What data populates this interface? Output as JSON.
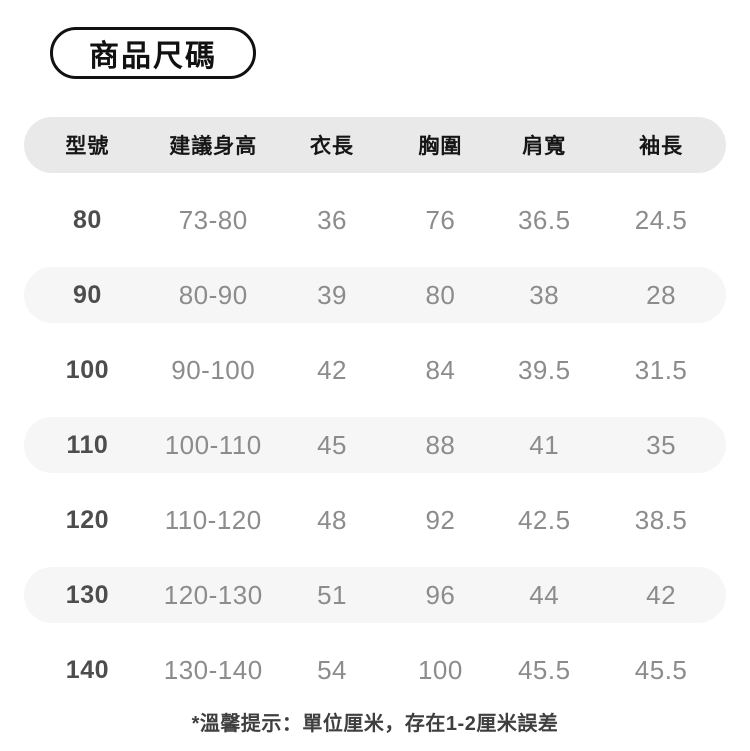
{
  "title_badge": "商品尺碼",
  "table": {
    "headers": [
      "型號",
      "建議身高",
      "衣長",
      "胸圍",
      "肩寬",
      "袖長"
    ],
    "rows": [
      [
        "80",
        "73-80",
        "36",
        "76",
        "36.5",
        "24.5"
      ],
      [
        "90",
        "80-90",
        "39",
        "80",
        "38",
        "28"
      ],
      [
        "100",
        "90-100",
        "42",
        "84",
        "39.5",
        "31.5"
      ],
      [
        "110",
        "100-110",
        "45",
        "88",
        "41",
        "35"
      ],
      [
        "120",
        "110-120",
        "48",
        "92",
        "42.5",
        "38.5"
      ],
      [
        "130",
        "120-130",
        "51",
        "96",
        "44",
        "42"
      ],
      [
        "140",
        "130-140",
        "54",
        "100",
        "45.5",
        "45.5"
      ]
    ]
  },
  "footer_note": "*溫馨提示：單位厘米，存在1-2厘米誤差",
  "colors": {
    "header_bg": "#e9e9e9",
    "row_alt_bg": "#f6f6f6",
    "header_text": "#161616",
    "size_col_text": "#4d4d4d",
    "data_text": "#8c8c8c",
    "footer_text": "#3f3f3f",
    "badge_border": "#111111"
  }
}
